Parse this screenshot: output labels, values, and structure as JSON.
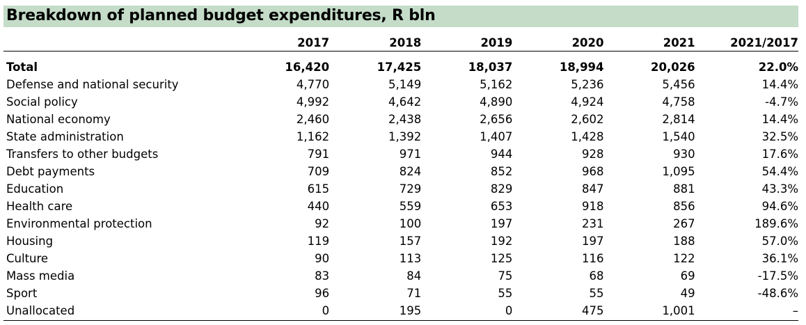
{
  "title": "Breakdown of planned budget expenditures, R bln",
  "chart_data": {
    "type": "table",
    "title": "Breakdown of planned budget expenditures, R bln",
    "columns": [
      "",
      "2017",
      "2018",
      "2019",
      "2020",
      "2021",
      "2021/2017"
    ],
    "rows": [
      {
        "label": "Total",
        "values": [
          "16,420",
          "17,425",
          "18,037",
          "18,994",
          "20,026",
          "22.0%"
        ]
      },
      {
        "label": "Defense and national security",
        "values": [
          "4,770",
          "5,149",
          "5,162",
          "5,236",
          "5,456",
          "14.4%"
        ]
      },
      {
        "label": "Social policy",
        "values": [
          "4,992",
          "4,642",
          "4,890",
          "4,924",
          "4,758",
          "-4.7%"
        ]
      },
      {
        "label": "National economy",
        "values": [
          "2,460",
          "2,438",
          "2,656",
          "2,602",
          "2,814",
          "14.4%"
        ]
      },
      {
        "label": "State administration",
        "values": [
          "1,162",
          "1,392",
          "1,407",
          "1,428",
          "1,540",
          "32.5%"
        ]
      },
      {
        "label": "Transfers to other budgets",
        "values": [
          "791",
          "971",
          "944",
          "928",
          "930",
          "17.6%"
        ]
      },
      {
        "label": "Debt payments",
        "values": [
          "709",
          "824",
          "852",
          "968",
          "1,095",
          "54.4%"
        ]
      },
      {
        "label": "Education",
        "values": [
          "615",
          "729",
          "829",
          "847",
          "881",
          "43.3%"
        ]
      },
      {
        "label": "Health care",
        "values": [
          "440",
          "559",
          "653",
          "918",
          "856",
          "94.6%"
        ]
      },
      {
        "label": "Environmental protection",
        "values": [
          "92",
          "100",
          "197",
          "231",
          "267",
          "189.6%"
        ]
      },
      {
        "label": "Housing",
        "values": [
          "119",
          "157",
          "192",
          "197",
          "188",
          "57.0%"
        ]
      },
      {
        "label": "Culture",
        "values": [
          "90",
          "113",
          "125",
          "116",
          "122",
          "36.1%"
        ]
      },
      {
        "label": "Mass media",
        "values": [
          "83",
          "84",
          "75",
          "68",
          "69",
          "-17.5%"
        ]
      },
      {
        "label": "Sport",
        "values": [
          "96",
          "71",
          "55",
          "55",
          "49",
          "-48.6%"
        ]
      },
      {
        "label": "Unallocated",
        "values": [
          "0",
          "195",
          "0",
          "475",
          "1,001",
          "–"
        ]
      }
    ]
  }
}
